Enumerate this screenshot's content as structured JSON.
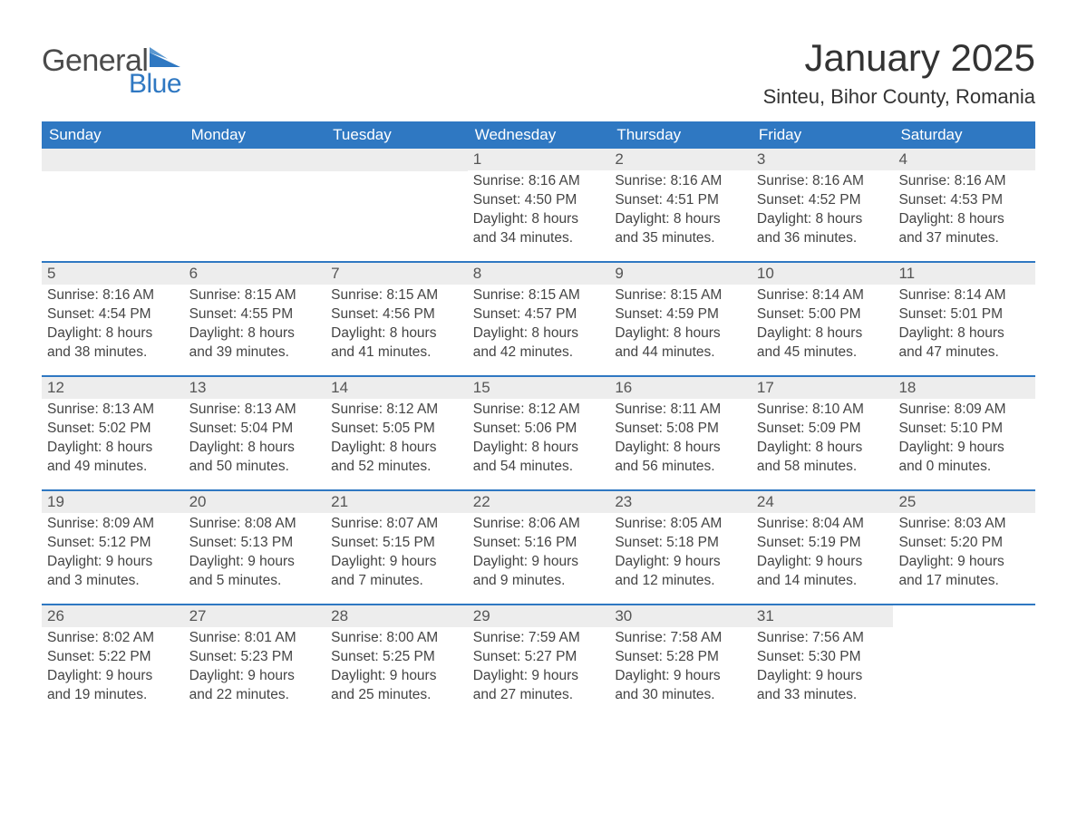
{
  "logo": {
    "word1": "General",
    "word2": "Blue"
  },
  "title": "January 2025",
  "location": "Sinteu, Bihor County, Romania",
  "colors": {
    "header_bg": "#2f78c2",
    "header_text": "#ffffff",
    "daynum_bg": "#ededed",
    "body_text": "#444444",
    "page_bg": "#ffffff"
  },
  "weekdays": [
    "Sunday",
    "Monday",
    "Tuesday",
    "Wednesday",
    "Thursday",
    "Friday",
    "Saturday"
  ],
  "weeks": [
    [
      {
        "n": "",
        "sunrise": "",
        "sunset": "",
        "daylight1": "",
        "daylight2": ""
      },
      {
        "n": "",
        "sunrise": "",
        "sunset": "",
        "daylight1": "",
        "daylight2": ""
      },
      {
        "n": "",
        "sunrise": "",
        "sunset": "",
        "daylight1": "",
        "daylight2": ""
      },
      {
        "n": "1",
        "sunrise": "Sunrise: 8:16 AM",
        "sunset": "Sunset: 4:50 PM",
        "daylight1": "Daylight: 8 hours",
        "daylight2": "and 34 minutes."
      },
      {
        "n": "2",
        "sunrise": "Sunrise: 8:16 AM",
        "sunset": "Sunset: 4:51 PM",
        "daylight1": "Daylight: 8 hours",
        "daylight2": "and 35 minutes."
      },
      {
        "n": "3",
        "sunrise": "Sunrise: 8:16 AM",
        "sunset": "Sunset: 4:52 PM",
        "daylight1": "Daylight: 8 hours",
        "daylight2": "and 36 minutes."
      },
      {
        "n": "4",
        "sunrise": "Sunrise: 8:16 AM",
        "sunset": "Sunset: 4:53 PM",
        "daylight1": "Daylight: 8 hours",
        "daylight2": "and 37 minutes."
      }
    ],
    [
      {
        "n": "5",
        "sunrise": "Sunrise: 8:16 AM",
        "sunset": "Sunset: 4:54 PM",
        "daylight1": "Daylight: 8 hours",
        "daylight2": "and 38 minutes."
      },
      {
        "n": "6",
        "sunrise": "Sunrise: 8:15 AM",
        "sunset": "Sunset: 4:55 PM",
        "daylight1": "Daylight: 8 hours",
        "daylight2": "and 39 minutes."
      },
      {
        "n": "7",
        "sunrise": "Sunrise: 8:15 AM",
        "sunset": "Sunset: 4:56 PM",
        "daylight1": "Daylight: 8 hours",
        "daylight2": "and 41 minutes."
      },
      {
        "n": "8",
        "sunrise": "Sunrise: 8:15 AM",
        "sunset": "Sunset: 4:57 PM",
        "daylight1": "Daylight: 8 hours",
        "daylight2": "and 42 minutes."
      },
      {
        "n": "9",
        "sunrise": "Sunrise: 8:15 AM",
        "sunset": "Sunset: 4:59 PM",
        "daylight1": "Daylight: 8 hours",
        "daylight2": "and 44 minutes."
      },
      {
        "n": "10",
        "sunrise": "Sunrise: 8:14 AM",
        "sunset": "Sunset: 5:00 PM",
        "daylight1": "Daylight: 8 hours",
        "daylight2": "and 45 minutes."
      },
      {
        "n": "11",
        "sunrise": "Sunrise: 8:14 AM",
        "sunset": "Sunset: 5:01 PM",
        "daylight1": "Daylight: 8 hours",
        "daylight2": "and 47 minutes."
      }
    ],
    [
      {
        "n": "12",
        "sunrise": "Sunrise: 8:13 AM",
        "sunset": "Sunset: 5:02 PM",
        "daylight1": "Daylight: 8 hours",
        "daylight2": "and 49 minutes."
      },
      {
        "n": "13",
        "sunrise": "Sunrise: 8:13 AM",
        "sunset": "Sunset: 5:04 PM",
        "daylight1": "Daylight: 8 hours",
        "daylight2": "and 50 minutes."
      },
      {
        "n": "14",
        "sunrise": "Sunrise: 8:12 AM",
        "sunset": "Sunset: 5:05 PM",
        "daylight1": "Daylight: 8 hours",
        "daylight2": "and 52 minutes."
      },
      {
        "n": "15",
        "sunrise": "Sunrise: 8:12 AM",
        "sunset": "Sunset: 5:06 PM",
        "daylight1": "Daylight: 8 hours",
        "daylight2": "and 54 minutes."
      },
      {
        "n": "16",
        "sunrise": "Sunrise: 8:11 AM",
        "sunset": "Sunset: 5:08 PM",
        "daylight1": "Daylight: 8 hours",
        "daylight2": "and 56 minutes."
      },
      {
        "n": "17",
        "sunrise": "Sunrise: 8:10 AM",
        "sunset": "Sunset: 5:09 PM",
        "daylight1": "Daylight: 8 hours",
        "daylight2": "and 58 minutes."
      },
      {
        "n": "18",
        "sunrise": "Sunrise: 8:09 AM",
        "sunset": "Sunset: 5:10 PM",
        "daylight1": "Daylight: 9 hours",
        "daylight2": "and 0 minutes."
      }
    ],
    [
      {
        "n": "19",
        "sunrise": "Sunrise: 8:09 AM",
        "sunset": "Sunset: 5:12 PM",
        "daylight1": "Daylight: 9 hours",
        "daylight2": "and 3 minutes."
      },
      {
        "n": "20",
        "sunrise": "Sunrise: 8:08 AM",
        "sunset": "Sunset: 5:13 PM",
        "daylight1": "Daylight: 9 hours",
        "daylight2": "and 5 minutes."
      },
      {
        "n": "21",
        "sunrise": "Sunrise: 8:07 AM",
        "sunset": "Sunset: 5:15 PM",
        "daylight1": "Daylight: 9 hours",
        "daylight2": "and 7 minutes."
      },
      {
        "n": "22",
        "sunrise": "Sunrise: 8:06 AM",
        "sunset": "Sunset: 5:16 PM",
        "daylight1": "Daylight: 9 hours",
        "daylight2": "and 9 minutes."
      },
      {
        "n": "23",
        "sunrise": "Sunrise: 8:05 AM",
        "sunset": "Sunset: 5:18 PM",
        "daylight1": "Daylight: 9 hours",
        "daylight2": "and 12 minutes."
      },
      {
        "n": "24",
        "sunrise": "Sunrise: 8:04 AM",
        "sunset": "Sunset: 5:19 PM",
        "daylight1": "Daylight: 9 hours",
        "daylight2": "and 14 minutes."
      },
      {
        "n": "25",
        "sunrise": "Sunrise: 8:03 AM",
        "sunset": "Sunset: 5:20 PM",
        "daylight1": "Daylight: 9 hours",
        "daylight2": "and 17 minutes."
      }
    ],
    [
      {
        "n": "26",
        "sunrise": "Sunrise: 8:02 AM",
        "sunset": "Sunset: 5:22 PM",
        "daylight1": "Daylight: 9 hours",
        "daylight2": "and 19 minutes."
      },
      {
        "n": "27",
        "sunrise": "Sunrise: 8:01 AM",
        "sunset": "Sunset: 5:23 PM",
        "daylight1": "Daylight: 9 hours",
        "daylight2": "and 22 minutes."
      },
      {
        "n": "28",
        "sunrise": "Sunrise: 8:00 AM",
        "sunset": "Sunset: 5:25 PM",
        "daylight1": "Daylight: 9 hours",
        "daylight2": "and 25 minutes."
      },
      {
        "n": "29",
        "sunrise": "Sunrise: 7:59 AM",
        "sunset": "Sunset: 5:27 PM",
        "daylight1": "Daylight: 9 hours",
        "daylight2": "and 27 minutes."
      },
      {
        "n": "30",
        "sunrise": "Sunrise: 7:58 AM",
        "sunset": "Sunset: 5:28 PM",
        "daylight1": "Daylight: 9 hours",
        "daylight2": "and 30 minutes."
      },
      {
        "n": "31",
        "sunrise": "Sunrise: 7:56 AM",
        "sunset": "Sunset: 5:30 PM",
        "daylight1": "Daylight: 9 hours",
        "daylight2": "and 33 minutes."
      },
      {
        "n": "",
        "sunrise": "",
        "sunset": "",
        "daylight1": "",
        "daylight2": "",
        "trailing": true
      }
    ]
  ]
}
